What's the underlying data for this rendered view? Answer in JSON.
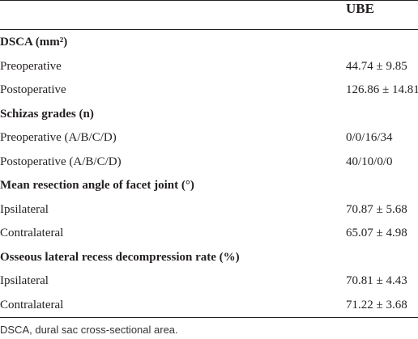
{
  "table": {
    "header": {
      "column": "UBE"
    },
    "sections": [
      {
        "title": "DSCA (mm²)",
        "rows": [
          [
            "Preoperative",
            "44.74 ± 9.85"
          ],
          [
            "Postoperative",
            "126.86 ± 14.81"
          ]
        ]
      },
      {
        "title": "Schizas grades (n)",
        "rows": [
          [
            "Preoperative (A/B/C/D)",
            "0/0/16/34"
          ],
          [
            "Postoperative (A/B/C/D)",
            "40/10/0/0"
          ]
        ]
      },
      {
        "title": "Mean resection angle of facet joint (°)",
        "rows": [
          [
            "Ipsilateral",
            "70.87 ± 5.68"
          ],
          [
            "Contralateral",
            "65.07 ± 4.98"
          ]
        ]
      },
      {
        "title": "Osseous lateral recess decompression rate (%)",
        "rows": [
          [
            "Ipsilateral",
            "70.81 ± 4.43"
          ],
          [
            "Contralateral",
            "71.22 ± 3.68"
          ]
        ]
      }
    ],
    "footnote": "DSCA, dural sac cross-sectional area."
  }
}
